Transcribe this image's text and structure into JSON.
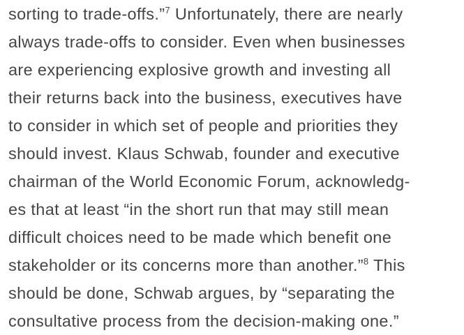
{
  "paragraph": {
    "lines": [
      [
        {
          "text": "sorting to trade-offs.”"
        },
        {
          "sup": "7"
        },
        {
          "text": " Unfortunately, there are nearly"
        }
      ],
      [
        {
          "text": "always trade-offs to consider. Even when businesses"
        }
      ],
      [
        {
          "text": "are experiencing explosive growth and investing all"
        }
      ],
      [
        {
          "text": "their returns back into the business, executives have"
        }
      ],
      [
        {
          "text": "to consider in which set of people and priorities they"
        }
      ],
      [
        {
          "text": "should invest. Klaus Schwab, founder and executive"
        }
      ],
      [
        {
          "text": "chairman of the World Economic Forum, acknowledg-"
        }
      ],
      [
        {
          "text": "es that at least “in the short run that may still mean"
        }
      ],
      [
        {
          "text": "difficult choices need to be made which benefit one"
        }
      ],
      [
        {
          "text": "stakeholder or its concerns more than another.”"
        },
        {
          "sup": "8"
        },
        {
          "text": " This"
        }
      ],
      [
        {
          "text": "should be done, Schwab argues, by “separating the"
        }
      ],
      [
        {
          "text": "consultative process from the decision-making one.”"
        }
      ]
    ]
  }
}
